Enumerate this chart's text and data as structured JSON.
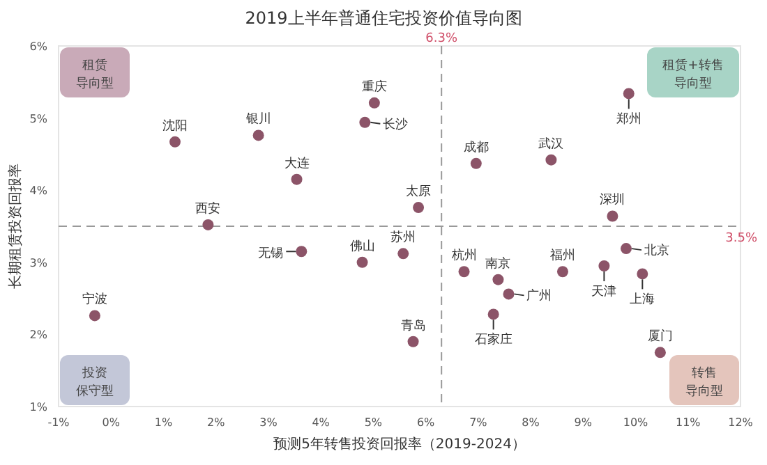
{
  "chart_data": {
    "type": "scatter",
    "title": "2019上半年普通住宅投资价值导向图",
    "xlabel": "预测5年转售投资回报率（2019-2024）",
    "ylabel": "长期租赁投资回报率",
    "xlim": [
      -1,
      12
    ],
    "ylim": [
      1,
      6
    ],
    "xticks": [
      {
        "value": -1,
        "label": "-1%"
      },
      {
        "value": 0,
        "label": "0%"
      },
      {
        "value": 1,
        "label": "1%"
      },
      {
        "value": 2,
        "label": "2%"
      },
      {
        "value": 3,
        "label": "3%"
      },
      {
        "value": 4,
        "label": "4%"
      },
      {
        "value": 5,
        "label": "5%"
      },
      {
        "value": 6,
        "label": "6%"
      },
      {
        "value": 7,
        "label": "7%"
      },
      {
        "value": 8,
        "label": "8%"
      },
      {
        "value": 9,
        "label": "9%"
      },
      {
        "value": 10,
        "label": "10%"
      },
      {
        "value": 11,
        "label": "11%"
      },
      {
        "value": 12,
        "label": "12%"
      }
    ],
    "yticks": [
      {
        "value": 1,
        "label": "1%"
      },
      {
        "value": 2,
        "label": "2%"
      },
      {
        "value": 3,
        "label": "3%"
      },
      {
        "value": 4,
        "label": "4%"
      },
      {
        "value": 5,
        "label": "5%"
      },
      {
        "value": 6,
        "label": "6%"
      }
    ],
    "marker": "circle",
    "grid": false,
    "series": [
      {
        "color": "#8c5468",
        "x": [
          1.22,
          2.81,
          3.54,
          1.85,
          5.02,
          4.84,
          5.86,
          6.96,
          8.39,
          9.87,
          9.56,
          -0.31,
          3.63,
          4.79,
          5.57,
          5.76,
          6.73,
          7.38,
          7.58,
          7.29,
          8.61,
          9.4,
          9.82,
          10.13,
          10.47
        ],
        "values": [
          4.67,
          4.76,
          4.15,
          3.52,
          5.21,
          4.94,
          3.76,
          4.37,
          4.42,
          5.34,
          3.64,
          2.26,
          3.15,
          3.0,
          3.12,
          1.9,
          2.87,
          2.76,
          2.56,
          2.28,
          2.87,
          2.95,
          3.19,
          2.84,
          1.75
        ]
      }
    ],
    "ref_lines": [
      {
        "axis": "x",
        "value": 6.3,
        "label": "6.3%",
        "color": "#999999",
        "line_style": "dashed"
      },
      {
        "axis": "y",
        "value": 3.5,
        "label": "3.5%",
        "color": "#999999",
        "line_style": "dashed"
      }
    ],
    "annotations": [
      "租赁导向型",
      "租赁+转售导向型",
      "投资保守型",
      "转售导向型",
      {
        "text": "沈阳",
        "x": 1.22,
        "y": 4.67
      },
      {
        "text": "银川",
        "x": 2.81,
        "y": 4.76
      },
      {
        "text": "大连",
        "x": 3.54,
        "y": 4.15
      },
      {
        "text": "西安",
        "x": 1.85,
        "y": 3.52
      },
      {
        "text": "重庆",
        "x": 5.02,
        "y": 5.21
      },
      {
        "text": "长沙",
        "x": 4.84,
        "y": 4.94
      },
      {
        "text": "太原",
        "x": 5.86,
        "y": 3.76
      },
      {
        "text": "成都",
        "x": 6.96,
        "y": 4.37
      },
      {
        "text": "武汉",
        "x": 8.39,
        "y": 4.42
      },
      {
        "text": "郑州",
        "x": 9.87,
        "y": 5.34
      },
      {
        "text": "深圳",
        "x": 9.56,
        "y": 3.64
      },
      {
        "text": "宁波",
        "x": -0.31,
        "y": 2.26
      },
      {
        "text": "无锡",
        "x": 3.63,
        "y": 3.15
      },
      {
        "text": "佛山",
        "x": 4.79,
        "y": 3.0
      },
      {
        "text": "苏州",
        "x": 5.57,
        "y": 3.12
      },
      {
        "text": "青岛",
        "x": 5.76,
        "y": 1.9
      },
      {
        "text": "杭州",
        "x": 6.73,
        "y": 2.87
      },
      {
        "text": "南京",
        "x": 7.38,
        "y": 2.76
      },
      {
        "text": "广州",
        "x": 7.58,
        "y": 2.56
      },
      {
        "text": "石家庄",
        "x": 7.29,
        "y": 2.28
      },
      {
        "text": "福州",
        "x": 8.61,
        "y": 2.87
      },
      {
        "text": "天津",
        "x": 9.4,
        "y": 2.95
      },
      {
        "text": "北京",
        "x": 9.82,
        "y": 3.19
      },
      {
        "text": "上海",
        "x": 10.13,
        "y": 2.84
      },
      {
        "text": "厦门",
        "x": 10.47,
        "y": 1.75
      }
    ]
  }
}
